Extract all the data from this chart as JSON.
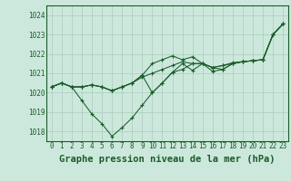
{
  "title": "Graphe pression niveau de la mer (hPa)",
  "bg_color": "#cce8dc",
  "grid_color": "#aaccbb",
  "line_color": "#1a5c2a",
  "x_labels": [
    "0",
    "1",
    "2",
    "3",
    "4",
    "5",
    "6",
    "7",
    "8",
    "9",
    "10",
    "11",
    "12",
    "13",
    "14",
    "15",
    "16",
    "17",
    "18",
    "19",
    "20",
    "21",
    "22",
    "23"
  ],
  "ylim": [
    1017.5,
    1024.5
  ],
  "yticks": [
    1018,
    1019,
    1020,
    1021,
    1022,
    1023,
    1024
  ],
  "line1": [
    1020.3,
    1020.5,
    1020.3,
    1020.3,
    1020.4,
    1020.3,
    1020.1,
    1020.3,
    1020.5,
    1020.8,
    1021.0,
    1021.2,
    1021.4,
    1021.6,
    1021.5,
    1021.5,
    1021.3,
    1021.4,
    1021.5,
    1021.6,
    1021.65,
    1021.7,
    1023.0,
    1023.55
  ],
  "line2": [
    1020.3,
    1020.5,
    1020.3,
    1019.6,
    1018.9,
    1018.4,
    1017.75,
    1018.2,
    1018.7,
    1019.35,
    1020.0,
    1020.5,
    1021.05,
    1021.5,
    1021.15,
    1021.5,
    1021.1,
    1021.2,
    1021.5,
    1021.6,
    1021.65,
    1021.7,
    1023.0,
    1023.55
  ],
  "line3": [
    1020.3,
    1020.5,
    1020.3,
    1020.3,
    1020.4,
    1020.3,
    1020.1,
    1020.3,
    1020.5,
    1020.9,
    1021.5,
    1021.7,
    1021.9,
    1021.7,
    1021.85,
    1021.5,
    1021.3,
    1021.4,
    1021.55,
    1021.6,
    1021.65,
    1021.7,
    1023.0,
    1023.55
  ],
  "line4": [
    1020.3,
    1020.5,
    1020.3,
    1020.3,
    1020.4,
    1020.3,
    1020.1,
    1020.3,
    1020.5,
    1020.9,
    1020.0,
    1020.5,
    1021.05,
    1021.2,
    1021.5,
    1021.5,
    1021.3,
    1021.2,
    1021.5,
    1021.6,
    1021.65,
    1021.7,
    1023.0,
    1023.55
  ],
  "title_fontsize": 7.5,
  "tick_fontsize": 5.5,
  "marker_size": 3,
  "lw": 0.75
}
